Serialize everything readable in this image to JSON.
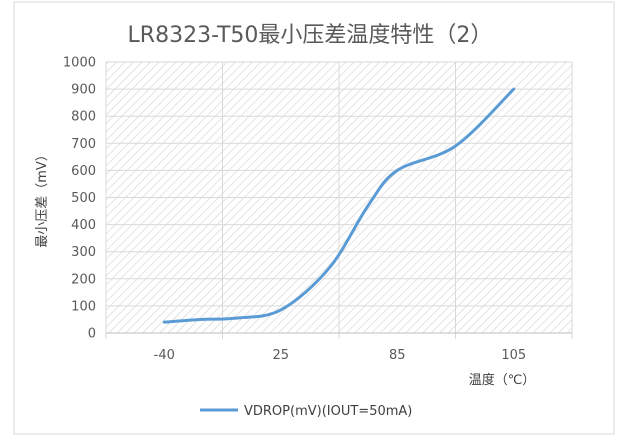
{
  "chart_data": {
    "type": "line",
    "title": "LR8323-T50最小压差温度特性（2）",
    "xlabel": "温度（℃）",
    "ylabel": "最小压差（mV）",
    "categories": [
      "-40",
      "25",
      "85",
      "105"
    ],
    "ylim": [
      0,
      1000
    ],
    "yticks": [
      0,
      100,
      200,
      300,
      400,
      500,
      600,
      700,
      800,
      900,
      1000
    ],
    "grid": true,
    "legend_position": "bottom",
    "series": [
      {
        "name": "VDROP(mV)(IOUT=50mA)",
        "color": "#5b9bd5",
        "x": [
          -40,
          -20,
          0,
          25,
          50,
          70,
          85,
          95,
          105
        ],
        "values": [
          40,
          50,
          55,
          85,
          240,
          470,
          600,
          690,
          900
        ]
      }
    ]
  },
  "colors": {
    "series_line": "#5b9bd5",
    "grid": "#d9d9d9",
    "hatch": "#cfcfcf",
    "text": "#595959"
  }
}
